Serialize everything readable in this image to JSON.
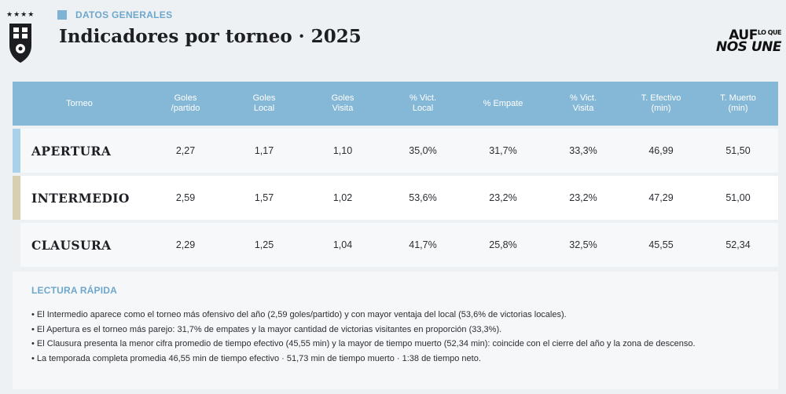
{
  "header": {
    "stars": "★★★★",
    "section_tag": "DATOS GENERALES",
    "title": "Indicadores por torneo · 2025",
    "brand_line1": "AUF",
    "brand_line1_small": "LO QUE",
    "brand_line2": "NOS UNE"
  },
  "table": {
    "columns": [
      [
        "Torneo"
      ],
      [
        "Goles",
        "/partido"
      ],
      [
        "Goles",
        "Local"
      ],
      [
        "Goles",
        "Visita"
      ],
      [
        "% Vict.",
        "Local"
      ],
      [
        "% Empate"
      ],
      [
        "% Vict.",
        "Visita"
      ],
      [
        "T. Efectivo",
        "(min)"
      ],
      [
        "T. Muerto",
        "(min)"
      ]
    ],
    "rows": [
      {
        "name": "APERTURA",
        "accent": "#a9d2ea",
        "values": [
          "2,27",
          "1,17",
          "1,10",
          "35,0%",
          "31,7%",
          "33,3%",
          "46,99",
          "51,50"
        ]
      },
      {
        "name": "INTERMEDIO",
        "accent": "#d8cfb2",
        "values": [
          "2,59",
          "1,57",
          "1,02",
          "53,6%",
          "23,2%",
          "23,2%",
          "47,29",
          "51,00"
        ]
      },
      {
        "name": "CLAUSURA",
        "accent": "#eef0f2",
        "values": [
          "2,29",
          "1,25",
          "1,04",
          "41,7%",
          "25,8%",
          "32,5%",
          "45,55",
          "52,34"
        ]
      }
    ]
  },
  "reading": {
    "title": "LECTURA RÁPIDA",
    "items": [
      "• El Intermedio aparece como el torneo más ofensivo del año (2,59 goles/partido) y con mayor ventaja del local (53,6% de victorias locales).",
      "• El Apertura es el torneo más parejo: 31,7% de empates y la mayor cantidad de victorias visitantes en proporción (33,3%).",
      "• El Clausura presenta la menor cifra promedio de tiempo efectivo (45,55 min) y la mayor de tiempo muerto (52,34 min): coincide con el cierre del año y la zona de descenso.",
      "• La temporada completa promedia 46,55 min de tiempo efectivo · 51,73 min de tiempo muerto · 1:38 de tiempo neto."
    ]
  }
}
